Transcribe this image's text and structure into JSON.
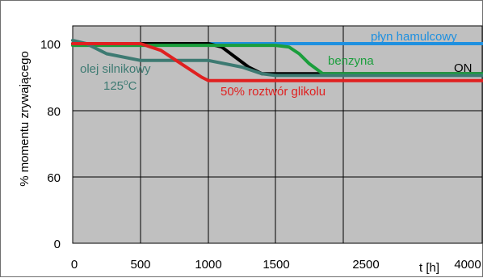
{
  "chart_data": {
    "type": "line",
    "xlabel": "t [h]",
    "ylabel": "% momentu zrywającego",
    "x_tick_labels": [
      "0",
      "500",
      "1000",
      "1500",
      "2500",
      "4000"
    ],
    "y_tick_labels": [
      "0",
      "60",
      "80",
      "100"
    ],
    "xlim": [
      0,
      4000
    ],
    "ylim_labels": [
      "0",
      "100"
    ],
    "grid": true,
    "plot_background": "#c0c0c0",
    "series": [
      {
        "name": "płyn hamulcowy",
        "color": "#1e90e0",
        "points": [
          [
            0,
            100
          ],
          [
            1000,
            100
          ],
          [
            2500,
            100
          ],
          [
            4000,
            100
          ]
        ]
      },
      {
        "name": "ON",
        "color": "#000000",
        "points": [
          [
            0,
            100
          ],
          [
            1000,
            100
          ],
          [
            1100,
            99
          ],
          [
            1200,
            96
          ],
          [
            1300,
            93
          ],
          [
            1400,
            91
          ],
          [
            1500,
            91
          ],
          [
            2500,
            91
          ],
          [
            4000,
            91
          ]
        ]
      },
      {
        "name": "benzyna",
        "color": "#1a9e3c",
        "points": [
          [
            0,
            99.5
          ],
          [
            1000,
            99.5
          ],
          [
            1500,
            99.5
          ],
          [
            1700,
            99
          ],
          [
            1850,
            97
          ],
          [
            2000,
            94
          ],
          [
            2200,
            91
          ],
          [
            2500,
            91
          ],
          [
            4000,
            91
          ]
        ]
      },
      {
        "name": "olej silnikowy 125°C",
        "color": "#3d7a72",
        "points": [
          [
            0,
            101
          ],
          [
            100,
            100
          ],
          [
            250,
            97
          ],
          [
            500,
            95
          ],
          [
            1000,
            95
          ],
          [
            1250,
            93
          ],
          [
            1400,
            91
          ],
          [
            1500,
            90.5
          ],
          [
            2500,
            90.5
          ],
          [
            4000,
            90.5
          ]
        ]
      },
      {
        "name": "50% roztwór glikolu",
        "color": "#e02020",
        "points": [
          [
            0,
            100
          ],
          [
            500,
            100
          ],
          [
            650,
            98
          ],
          [
            800,
            94
          ],
          [
            950,
            90
          ],
          [
            1000,
            89
          ],
          [
            1500,
            89
          ],
          [
            2500,
            89
          ],
          [
            4000,
            89
          ]
        ]
      }
    ],
    "annotations": [
      {
        "text": "płyn hamulcowy",
        "color": "#1e90e0"
      },
      {
        "text": "benzyna",
        "color": "#1a9e3c"
      },
      {
        "text": "ON",
        "color": "#000000"
      },
      {
        "text": "olej silnikowy",
        "color": "#3d7a72"
      },
      {
        "text": "125",
        "sup": "o",
        "unit": "C",
        "color": "#3d7a72"
      },
      {
        "text": "50% roztwór glikolu",
        "color": "#e02020"
      }
    ]
  }
}
